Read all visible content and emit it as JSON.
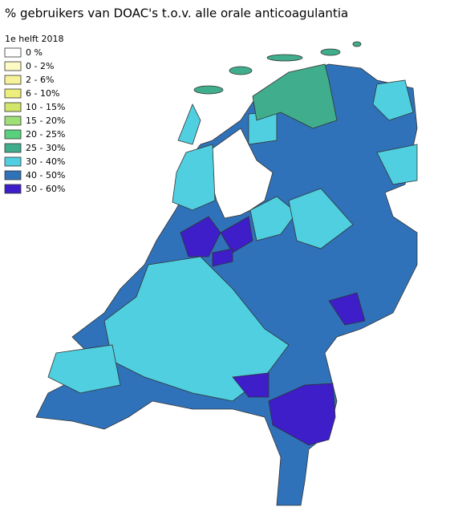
{
  "title": "% gebruikers van DOAC's t.o.v. alle orale anticoagulantia",
  "legend": {
    "title": "1e helft 2018",
    "items": [
      {
        "label": "0 %",
        "color": "#ffffff"
      },
      {
        "label": "0 - 2%",
        "color": "#fdfbc4"
      },
      {
        "label": "2 - 6%",
        "color": "#f6f29a"
      },
      {
        "label": "6 - 10%",
        "color": "#eeee7c"
      },
      {
        "label": "10 - 15%",
        "color": "#d2e76a"
      },
      {
        "label": "15 - 20%",
        "color": "#9fdf78"
      },
      {
        "label": "20 - 25%",
        "color": "#58d07c"
      },
      {
        "label": "25 - 30%",
        "color": "#40ad8c"
      },
      {
        "label": "30 - 40%",
        "color": "#4fcfe0"
      },
      {
        "label": "40 - 50%",
        "color": "#2f72b9"
      },
      {
        "label": "50 - 60%",
        "color": "#3d1ec8"
      }
    ]
  }
}
